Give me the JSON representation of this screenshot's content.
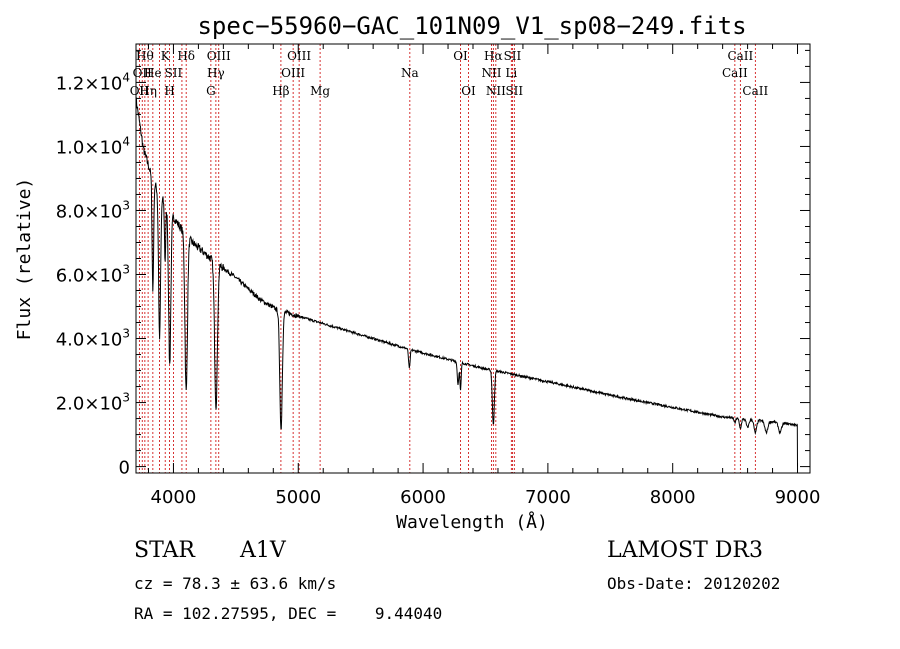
{
  "chart_data": {
    "type": "line",
    "title": "spec−55960−GAC_101N09_V1_sp08−249.fits",
    "xlabel": "Wavelength (Å)",
    "ylabel": "Flux (relative)",
    "xlim": [
      3700,
      9100
    ],
    "ylim": [
      -200,
      13200
    ],
    "x_ticks": [
      4000,
      5000,
      6000,
      7000,
      8000,
      9000
    ],
    "y_ticks": [
      {
        "value": 0,
        "mantissa": "0",
        "exp": ""
      },
      {
        "value": 2000,
        "mantissa": "2.0×10",
        "exp": "3"
      },
      {
        "value": 4000,
        "mantissa": "4.0×10",
        "exp": "3"
      },
      {
        "value": 6000,
        "mantissa": "6.0×10",
        "exp": "3"
      },
      {
        "value": 8000,
        "mantissa": "8.0×10",
        "exp": "3"
      },
      {
        "value": 10000,
        "mantissa": "1.0×10",
        "exp": "4"
      },
      {
        "value": 12000,
        "mantissa": "1.2×10",
        "exp": "4"
      }
    ],
    "continuum": [
      [
        3700,
        11500
      ],
      [
        3760,
        9900
      ],
      [
        3840,
        8900
      ],
      [
        3950,
        8100
      ],
      [
        4050,
        7500
      ],
      [
        4150,
        7000
      ],
      [
        4300,
        6500
      ],
      [
        4500,
        5900
      ],
      [
        4700,
        5200
      ],
      [
        4830,
        4900
      ],
      [
        5000,
        4700
      ],
      [
        5300,
        4350
      ],
      [
        5600,
        4000
      ],
      [
        5900,
        3650
      ],
      [
        6200,
        3350
      ],
      [
        6500,
        3050
      ],
      [
        6700,
        2900
      ],
      [
        7000,
        2650
      ],
      [
        7300,
        2400
      ],
      [
        7600,
        2150
      ],
      [
        8000,
        1850
      ],
      [
        8400,
        1550
      ],
      [
        8800,
        1400
      ],
      [
        9000,
        1300
      ]
    ],
    "absorption": [
      {
        "wl": 3835,
        "depth": 3500,
        "width": 6
      },
      {
        "wl": 3889,
        "depth": 4500,
        "width": 8
      },
      {
        "wl": 3933,
        "depth": 1800,
        "width": 5
      },
      {
        "wl": 3970,
        "depth": 4800,
        "width": 9
      },
      {
        "wl": 4102,
        "depth": 4900,
        "width": 10
      },
      {
        "wl": 4341,
        "depth": 4500,
        "width": 11
      },
      {
        "wl": 4862,
        "depth": 3700,
        "width": 10
      },
      {
        "wl": 5890,
        "depth": 600,
        "width": 6
      },
      {
        "wl": 6280,
        "depth": 700,
        "width": 6
      },
      {
        "wl": 6300,
        "depth": 900,
        "width": 5
      },
      {
        "wl": 6563,
        "depth": 1700,
        "width": 8
      },
      {
        "wl": 8498,
        "depth": 150,
        "width": 6
      },
      {
        "wl": 8542,
        "depth": 300,
        "width": 8
      },
      {
        "wl": 8600,
        "depth": 250,
        "width": 10
      },
      {
        "wl": 8662,
        "depth": 400,
        "width": 10
      },
      {
        "wl": 8750,
        "depth": 350,
        "width": 12
      },
      {
        "wl": 8860,
        "depth": 300,
        "width": 12
      }
    ],
    "line_markers": [
      {
        "wl": 3727,
        "label": "OII",
        "row": 2
      },
      {
        "wl": 3750,
        "label": "OII",
        "row": 1
      },
      {
        "wl": 3771,
        "label": "Hθ",
        "row": 0
      },
      {
        "wl": 3797,
        "label": "Hη",
        "row": 2
      },
      {
        "wl": 3835,
        "label": "He",
        "row": 1
      },
      {
        "wl": 3889,
        "label": "",
        "row": 1
      },
      {
        "wl": 3934,
        "label": "K",
        "row": 0
      },
      {
        "wl": 3969,
        "label": "H",
        "row": 2
      },
      {
        "wl": 4000,
        "label": "SII",
        "row": 1
      },
      {
        "wl": 4102,
        "label": "Hδ",
        "row": 0
      },
      {
        "wl": 4068,
        "label": "",
        "row": 1
      },
      {
        "wl": 4300,
        "label": "G",
        "row": 2
      },
      {
        "wl": 4340,
        "label": "Hγ",
        "row": 1
      },
      {
        "wl": 4363,
        "label": "OIII",
        "row": 0
      },
      {
        "wl": 4861,
        "label": "Hβ",
        "row": 2
      },
      {
        "wl": 4959,
        "label": "OIII",
        "row": 1
      },
      {
        "wl": 5007,
        "label": "OIII",
        "row": 0
      },
      {
        "wl": 5175,
        "label": "Mg",
        "row": 2
      },
      {
        "wl": 5894,
        "label": "Na",
        "row": 1
      },
      {
        "wl": 6300,
        "label": "OI",
        "row": 0
      },
      {
        "wl": 6364,
        "label": "OI",
        "row": 2
      },
      {
        "wl": 6548,
        "label": "NII",
        "row": 1
      },
      {
        "wl": 6563,
        "label": "Hα",
        "row": 0
      },
      {
        "wl": 6583,
        "label": "NII",
        "row": 2
      },
      {
        "wl": 6707,
        "label": "Li",
        "row": 1
      },
      {
        "wl": 6716,
        "label": "SII",
        "row": 0
      },
      {
        "wl": 6731,
        "label": "SII",
        "row": 2
      },
      {
        "wl": 8498,
        "label": "CaII",
        "row": 1
      },
      {
        "wl": 8542,
        "label": "CaII",
        "row": 0
      },
      {
        "wl": 8662,
        "label": "CaII",
        "row": 2
      }
    ]
  },
  "info": {
    "object_class": "STAR",
    "subclass": "A1V",
    "survey": "LAMOST DR3",
    "redshift": "cz = 78.3 ± 63.6 km/s",
    "obs_date": "Obs-Date: 20120202",
    "coords": "RA = 102.27595, DEC =    9.44040"
  },
  "colors": {
    "spectrum": "#000000",
    "marker": "#cc0000"
  }
}
